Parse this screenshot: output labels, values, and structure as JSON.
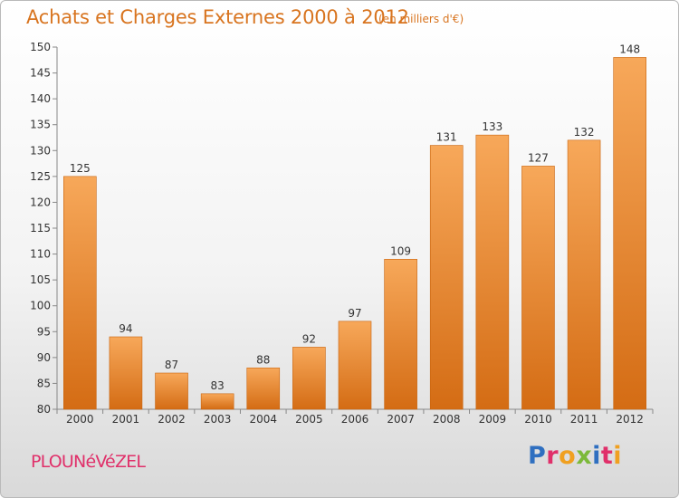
{
  "title": "Achats et Charges Externes 2000 à 2012",
  "subtitle": "(en milliers d'€)",
  "town": "PLOUNéVéZEL",
  "logo": {
    "text": "Proxiti",
    "colors": [
      "#2f6fc0",
      "#e0306a",
      "#f0a020",
      "#7cb93a",
      "#2f6fc0",
      "#e0306a",
      "#f0a020"
    ]
  },
  "colors": {
    "bar_top": "#f7a85a",
    "bar_bottom": "#d46c14",
    "text_accent": "#d8741f",
    "town": "#e0306a"
  },
  "chart_data": {
    "type": "bar",
    "categories": [
      "2000",
      "2001",
      "2002",
      "2003",
      "2004",
      "2005",
      "2006",
      "2007",
      "2008",
      "2009",
      "2010",
      "2011",
      "2012"
    ],
    "values": [
      125,
      94,
      87,
      83,
      88,
      92,
      97,
      109,
      131,
      133,
      127,
      132,
      148
    ],
    "title": "Achats et Charges Externes 2000 à 2012",
    "subtitle": "(en milliers d'€)",
    "xlabel": "",
    "ylabel": "",
    "ylim": [
      80,
      150
    ],
    "yticks": [
      80,
      85,
      90,
      95,
      100,
      105,
      110,
      115,
      120,
      125,
      130,
      135,
      140,
      145,
      150
    ],
    "grid": false,
    "data_labels": true
  }
}
